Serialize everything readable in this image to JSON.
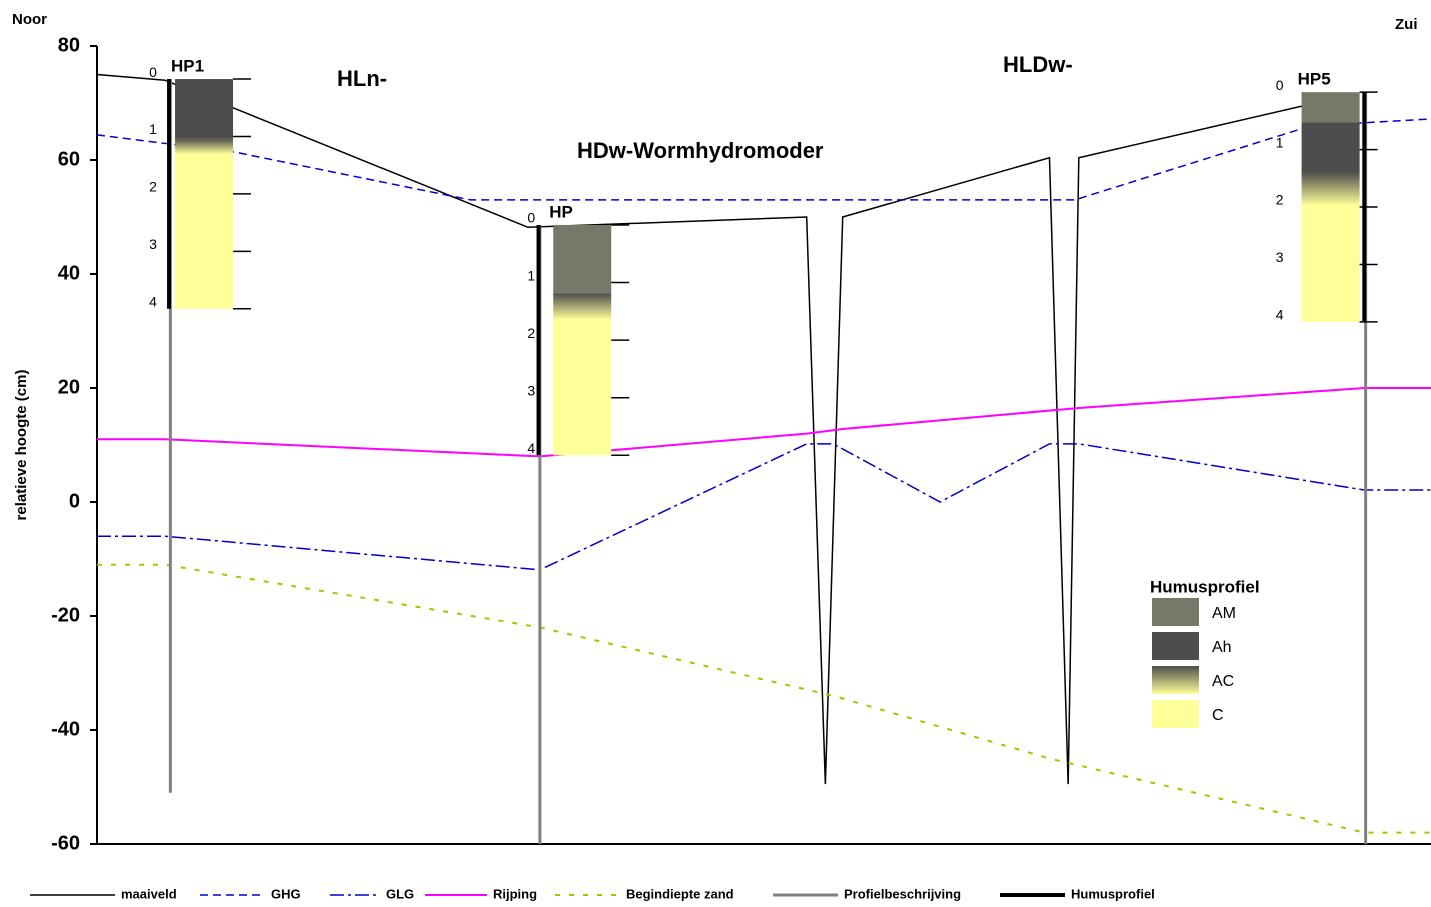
{
  "chart_data": {
    "type": "line",
    "y_label": "relatieve hoogte (cm)",
    "left_label": "Noor",
    "right_label": "Zui",
    "annotations": [
      "HLn-",
      "HDw-Wormhydromoder",
      "HLDw-"
    ],
    "ylim": [
      -60,
      80
    ],
    "yticks": [
      80,
      60,
      40,
      20,
      0,
      -20,
      -40,
      -60
    ],
    "xlim": [
      0,
      100
    ],
    "series": [
      {
        "name": "maaiveld",
        "color": "#000000",
        "style": "solid",
        "width": 1.5,
        "x": [
          0,
          5.1,
          32.3,
          53.2,
          54.6,
          55.9,
          71.4,
          72.8,
          73.6,
          90.6
        ],
        "values": [
          75,
          74,
          48.2,
          50,
          -49.5,
          50,
          60.4,
          -49.5,
          60.4,
          69.6
        ]
      },
      {
        "name": "GHG",
        "color": "#0000cc",
        "style": "dashed",
        "width": 1.5,
        "x": [
          0,
          10.3,
          28,
          73.3,
          91,
          100
        ],
        "values": [
          64.4,
          61.4,
          53,
          53,
          66,
          67.2
        ]
      },
      {
        "name": "GLG",
        "color": "#0000cc",
        "style": "dashdot",
        "width": 1.5,
        "x": [
          0,
          5.1,
          33.2,
          53.2,
          55.2,
          63.2,
          71.4,
          73.6,
          95,
          100
        ],
        "values": [
          -6,
          -6,
          -11.9,
          10.2,
          10.2,
          0,
          10.2,
          10.2,
          2.1,
          2.1
        ]
      },
      {
        "name": "Rijping",
        "color": "#ff00ff",
        "style": "solid",
        "width": 2,
        "x": [
          0,
          5.1,
          33.2,
          53.2,
          55.9,
          73.6,
          95,
          100
        ],
        "values": [
          11,
          11,
          8,
          12,
          12.8,
          16.5,
          20,
          20
        ]
      },
      {
        "name": "Begindiepte zand",
        "color": "#99cc00",
        "style": "dotted",
        "width": 2,
        "x": [
          0,
          5.1,
          33.2,
          55.2,
          71.4,
          95,
          100
        ],
        "values": [
          -11,
          -11,
          -22,
          -34,
          -45,
          -58,
          -58
        ]
      },
      {
        "name": "Profielbeschrijving",
        "color": "#808080",
        "style": "vertical",
        "width": 3,
        "segments": [
          {
            "x": 5.5,
            "top": 74.2,
            "bottom": -51
          },
          {
            "x": 33.2,
            "top": 48.6,
            "bottom": -60
          },
          {
            "x": 95.1,
            "top": 71.9,
            "bottom": -60
          }
        ]
      },
      {
        "name": "Humusprofiel",
        "color": "#000000",
        "style": "vertical",
        "width": 4,
        "segments": [
          {
            "x": 5.4,
            "top": 74.2,
            "bottom": 33.9
          },
          {
            "x": 33.1,
            "top": 48.6,
            "bottom": 8.2
          },
          {
            "x": 95.0,
            "top": 71.9,
            "bottom": 31.6
          }
        ]
      }
    ],
    "humus_legend": {
      "title": "Humusprofiel",
      "items": [
        {
          "name": "AM",
          "color": "#77776a"
        },
        {
          "name": "Ah",
          "color": "#4d4d4d"
        },
        {
          "name": "AC",
          "color": [
            "#4d4d4d",
            "#ffff99"
          ]
        },
        {
          "name": "C",
          "color": "#ffff99"
        }
      ]
    },
    "profiles": [
      {
        "name": "HP1",
        "x": 5.85,
        "depth_lim": [
          0,
          4
        ],
        "depth_ticks": [
          0,
          1,
          2,
          3,
          4
        ],
        "layers": [
          {
            "horizon": "Ah",
            "top": 74.2,
            "bottom": 63.8
          },
          {
            "horizon": "AC",
            "top": 63.8,
            "bottom": 61
          },
          {
            "horizon": "C",
            "top": 61,
            "bottom": 33.9
          }
        ]
      },
      {
        "name": "HP",
        "x": 34.2,
        "depth_lim": [
          0,
          4
        ],
        "depth_ticks": [
          0,
          1,
          2,
          3,
          4
        ],
        "layers": [
          {
            "horizon": "AM",
            "top": 48.6,
            "bottom": 36.6
          },
          {
            "horizon": "AC",
            "top": 36.6,
            "bottom": 32
          },
          {
            "horizon": "C",
            "top": 32,
            "bottom": 8.2
          }
        ]
      },
      {
        "name": "HP5",
        "x": 90.3,
        "depth_lim": [
          0,
          4
        ],
        "depth_ticks": [
          0,
          1,
          2,
          3,
          4
        ],
        "layers": [
          {
            "horizon": "AM",
            "top": 71.9,
            "bottom": 66.6
          },
          {
            "horizon": "Ah",
            "top": 66.6,
            "bottom": 57.9
          },
          {
            "horizon": "AC",
            "top": 57.9,
            "bottom": 52
          },
          {
            "horizon": "C",
            "top": 52,
            "bottom": 31.6
          }
        ]
      }
    ]
  }
}
